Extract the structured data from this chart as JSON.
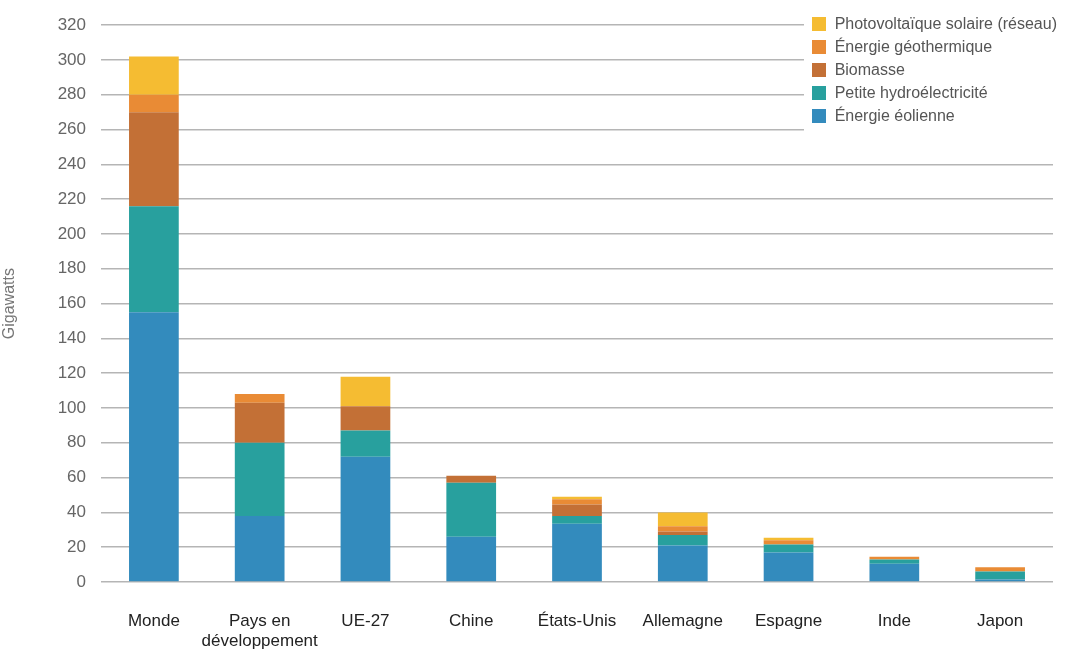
{
  "chart_data": {
    "type": "bar",
    "ylabel": "Gigawatts",
    "categories": [
      "Monde",
      "Pays en développement",
      "UE-27",
      "Chine",
      "États-Unis",
      "Allemagne",
      "Espagne",
      "Inde",
      "Japon"
    ],
    "series": [
      {
        "name": "Énergie éolienne",
        "color": "#338bbd",
        "values": [
          155,
          38,
          72,
          26,
          33.5,
          21,
          17,
          10.5,
          1.5
        ]
      },
      {
        "name": "Petite hydroélectricité",
        "color": "#28a09e",
        "values": [
          61,
          42,
          15,
          31,
          4.5,
          6,
          4.5,
          2.5,
          4.5
        ]
      },
      {
        "name": "Biomasse",
        "color": "#c37036",
        "values": [
          54,
          23,
          14,
          4,
          6.5,
          2,
          null,
          null,
          null
        ]
      },
      {
        "name": "Énergie géothermique",
        "color": "#e98b35",
        "values": [
          10,
          5,
          null,
          null,
          3,
          3,
          2.5,
          1.5,
          2.5
        ]
      },
      {
        "name": "Photovoltaïque solaire (réseau)",
        "color": "#f5bc32",
        "values": [
          22,
          null,
          17,
          null,
          1.5,
          8,
          1.5,
          null,
          null
        ]
      }
    ],
    "stacked": true,
    "ylim": [
      0,
      320
    ],
    "yticks": [
      0,
      20,
      40,
      60,
      80,
      100,
      120,
      140,
      160,
      180,
      200,
      220,
      240,
      260,
      280,
      300,
      320
    ],
    "grid": "y",
    "legend": "top right"
  }
}
